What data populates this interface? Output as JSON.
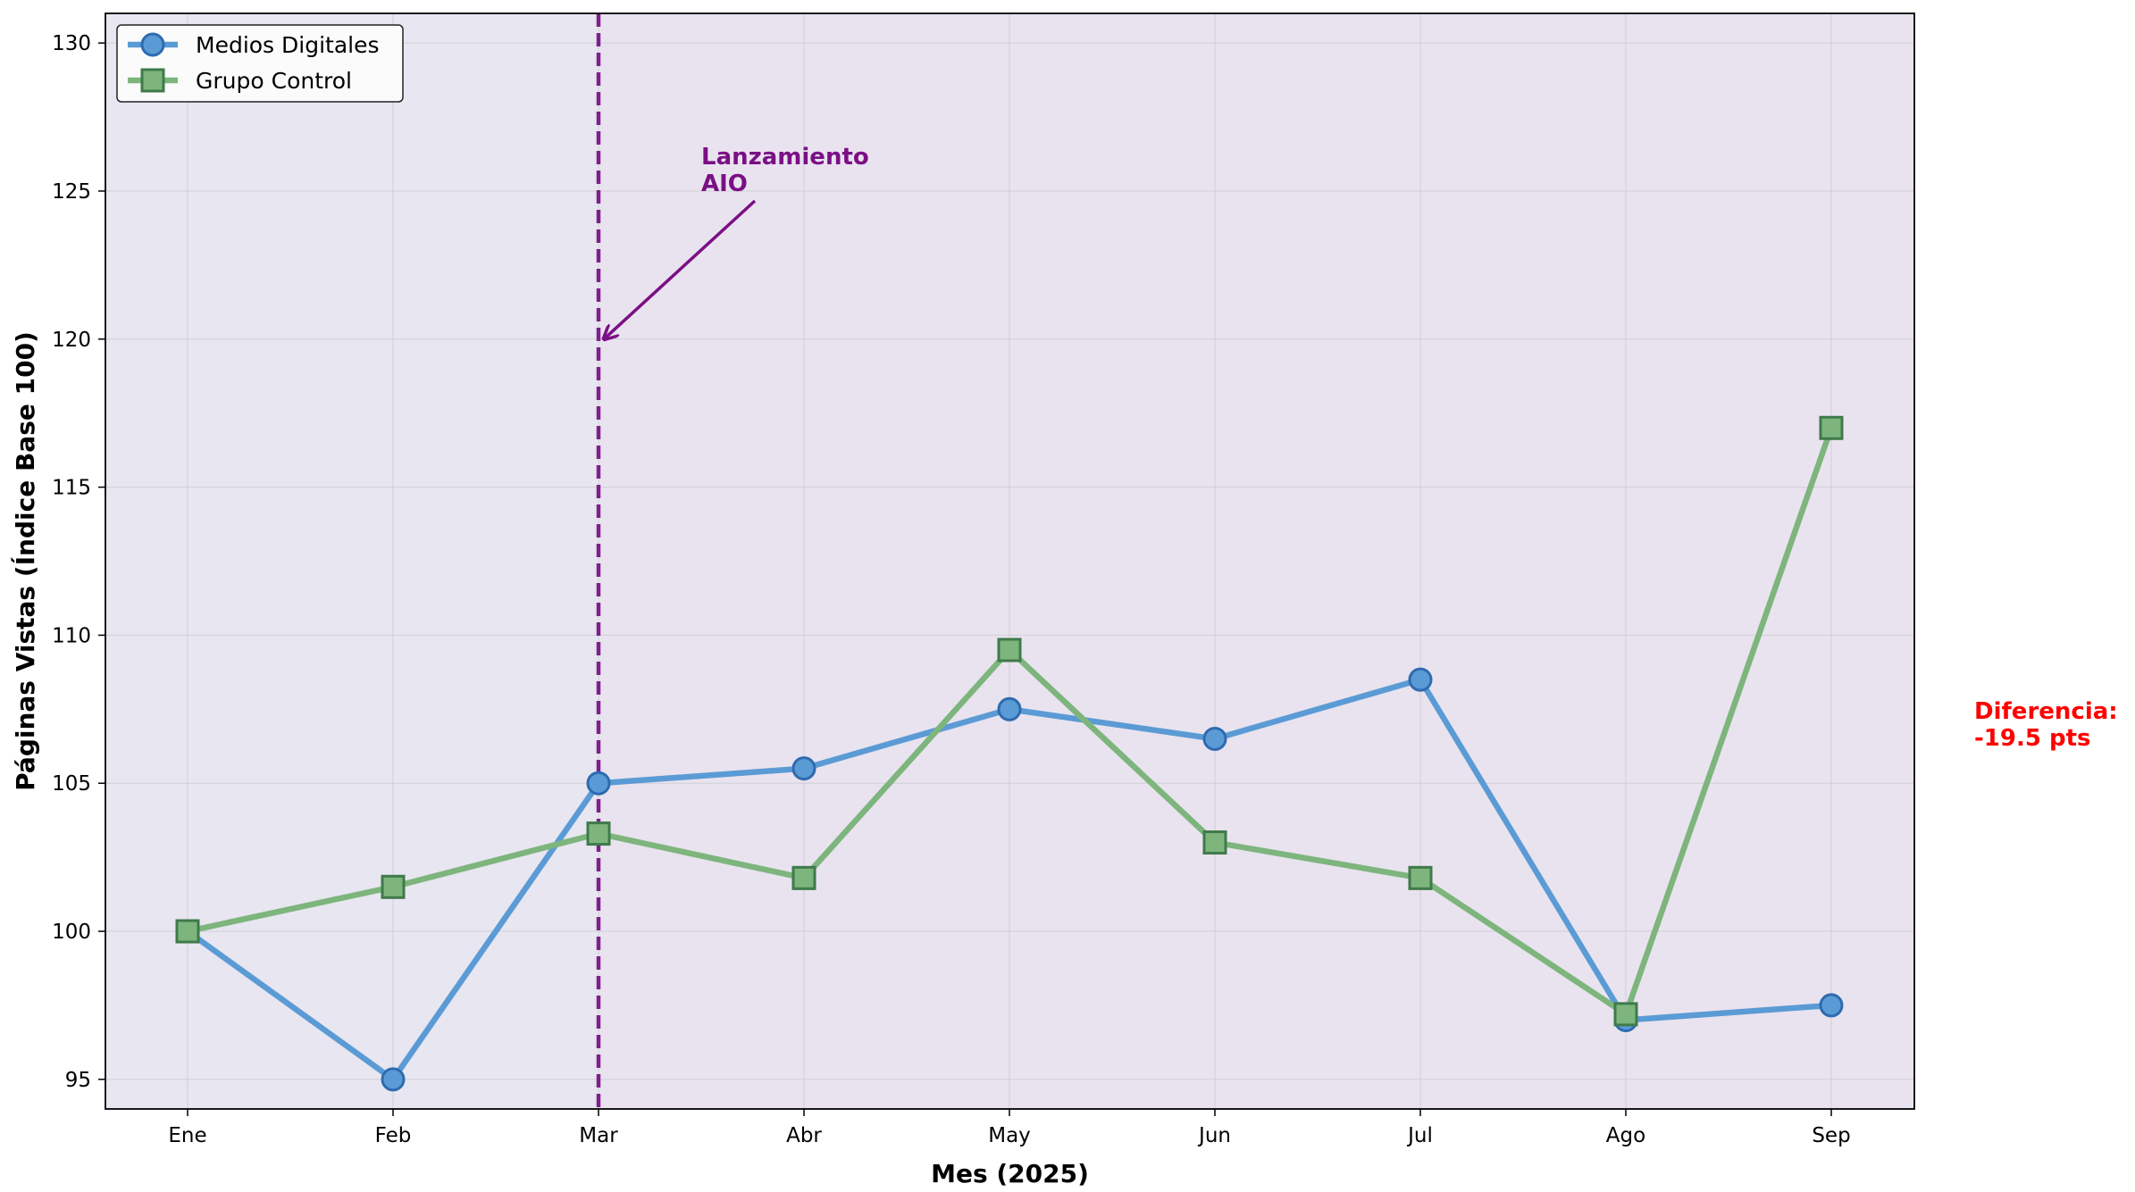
{
  "chart_data": {
    "type": "line",
    "xlabel": "Mes (2025)",
    "ylabel": "Páginas Vistas (Índice Base 100)",
    "categories": [
      "Ene",
      "Feb",
      "Mar",
      "Abr",
      "May",
      "Jun",
      "Jul",
      "Ago",
      "Sep"
    ],
    "ylim": [
      94,
      131
    ],
    "yticks": [
      95,
      100,
      105,
      110,
      115,
      120,
      125,
      130
    ],
    "grid": true,
    "legend_position": "top-left",
    "series": [
      {
        "name": "Medios Digitales",
        "marker": "circle",
        "color": "#5b9bd5",
        "edge_color": "#2e6bb0",
        "values": [
          100,
          95,
          105,
          105.5,
          107.5,
          106.5,
          108.5,
          97,
          97.5
        ]
      },
      {
        "name": "Grupo Control",
        "marker": "square",
        "color": "#7db57d",
        "edge_color": "#3f7a4a",
        "values": [
          100,
          101.5,
          103.3,
          101.8,
          109.5,
          103,
          101.8,
          97.2,
          117
        ]
      }
    ],
    "event": {
      "category": "Mar",
      "line_color": "#7f1f8f",
      "label_lines": [
        "Lanzamiento",
        "AIO"
      ],
      "label_color": "#7b0f85",
      "arrow_target_y": 120
    },
    "side_note": {
      "lines": [
        "Diferencia:",
        "-19.5 pts"
      ],
      "color": "#ff0000"
    },
    "colors": {
      "plot_background_pre": "#e8e6f0",
      "plot_background_post": "#e9e3ef",
      "grid": "#cfcfd6"
    }
  }
}
